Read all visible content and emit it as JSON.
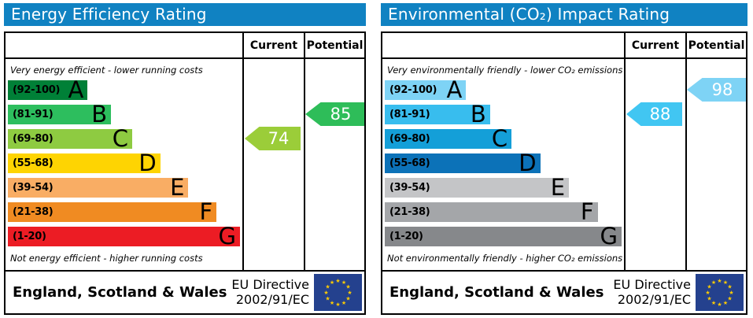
{
  "panels": [
    {
      "title": "Energy Efficiency Rating",
      "header_color": "#1082c2",
      "columns": {
        "current": "Current",
        "potential": "Potential"
      },
      "top_note": "Very energy efficient - lower running costs",
      "bottom_note": "Not energy efficient - higher running costs",
      "bands": [
        {
          "range": "(92-100)",
          "letter": "A",
          "color": "#008037",
          "width_pct": 34
        },
        {
          "range": "(81-91)",
          "letter": "B",
          "color": "#2dbe5e",
          "width_pct": 44
        },
        {
          "range": "(69-80)",
          "letter": "C",
          "color": "#8ecb41",
          "width_pct": 53
        },
        {
          "range": "(55-68)",
          "letter": "D",
          "color": "#fed402",
          "width_pct": 65
        },
        {
          "range": "(39-54)",
          "letter": "E",
          "color": "#f9ad64",
          "width_pct": 77
        },
        {
          "range": "(21-38)",
          "letter": "F",
          "color": "#f08b22",
          "width_pct": 89
        },
        {
          "range": "(1-20)",
          "letter": "G",
          "color": "#ec1c24",
          "width_pct": 99
        }
      ],
      "current": {
        "value": "74",
        "band_index": 2,
        "color": "#9bcd39"
      },
      "potential": {
        "value": "85",
        "band_index": 1,
        "color": "#2ebd59"
      },
      "footer": {
        "region": "England, Scotland & Wales",
        "directive_line1": "EU Directive",
        "directive_line2": "2002/91/EC",
        "flag_color": "#24418e",
        "star_color": "#ffcc00"
      }
    },
    {
      "title": "Environmental (CO₂) Impact Rating",
      "header_color": "#1082c2",
      "columns": {
        "current": "Current",
        "potential": "Potential"
      },
      "top_note": "Very environmentally friendly - lower CO₂ emissions",
      "bottom_note": "Not environmentally friendly - higher CO₂ emissions",
      "bands": [
        {
          "range": "(92-100)",
          "letter": "A",
          "color": "#7ed3f5",
          "width_pct": 34
        },
        {
          "range": "(81-91)",
          "letter": "B",
          "color": "#38bdee",
          "width_pct": 44
        },
        {
          "range": "(69-80)",
          "letter": "C",
          "color": "#149fd8",
          "width_pct": 53
        },
        {
          "range": "(55-68)",
          "letter": "D",
          "color": "#0c72b8",
          "width_pct": 65
        },
        {
          "range": "(39-54)",
          "letter": "E",
          "color": "#c4c5c7",
          "width_pct": 77
        },
        {
          "range": "(21-38)",
          "letter": "F",
          "color": "#a4a6a9",
          "width_pct": 89
        },
        {
          "range": "(1-20)",
          "letter": "G",
          "color": "#86888b",
          "width_pct": 99
        }
      ],
      "current": {
        "value": "88",
        "band_index": 1,
        "color": "#41c6f2"
      },
      "potential": {
        "value": "98",
        "band_index": 0,
        "color": "#7ed3f5"
      },
      "footer": {
        "region": "England, Scotland & Wales",
        "directive_line1": "EU Directive",
        "directive_line2": "2002/91/EC",
        "flag_color": "#24418e",
        "star_color": "#ffcc00"
      }
    }
  ],
  "chart_data": [
    {
      "type": "bar",
      "title": "Energy Efficiency Rating",
      "orientation": "horizontal",
      "categories": [
        "A (92-100)",
        "B (81-91)",
        "C (69-80)",
        "D (55-68)",
        "E (39-54)",
        "F (21-38)",
        "G (1-20)"
      ],
      "band_ranges": [
        [
          92,
          100
        ],
        [
          81,
          91
        ],
        [
          69,
          80
        ],
        [
          55,
          68
        ],
        [
          39,
          54
        ],
        [
          21,
          38
        ],
        [
          1,
          20
        ]
      ],
      "values": [
        34,
        44,
        53,
        65,
        77,
        89,
        99
      ],
      "current": 74,
      "potential": 85,
      "xlabel": "",
      "ylabel": "",
      "xlim": [
        0,
        100
      ],
      "legend": [
        "Current",
        "Potential"
      ]
    },
    {
      "type": "bar",
      "title": "Environmental (CO₂) Impact Rating",
      "orientation": "horizontal",
      "categories": [
        "A (92-100)",
        "B (81-91)",
        "C (69-80)",
        "D (55-68)",
        "E (39-54)",
        "F (21-38)",
        "G (1-20)"
      ],
      "band_ranges": [
        [
          92,
          100
        ],
        [
          81,
          91
        ],
        [
          69,
          80
        ],
        [
          55,
          68
        ],
        [
          39,
          54
        ],
        [
          21,
          38
        ],
        [
          1,
          20
        ]
      ],
      "values": [
        34,
        44,
        53,
        65,
        77,
        89,
        99
      ],
      "current": 88,
      "potential": 98,
      "xlabel": "",
      "ylabel": "",
      "xlim": [
        0,
        100
      ],
      "legend": [
        "Current",
        "Potential"
      ]
    }
  ]
}
